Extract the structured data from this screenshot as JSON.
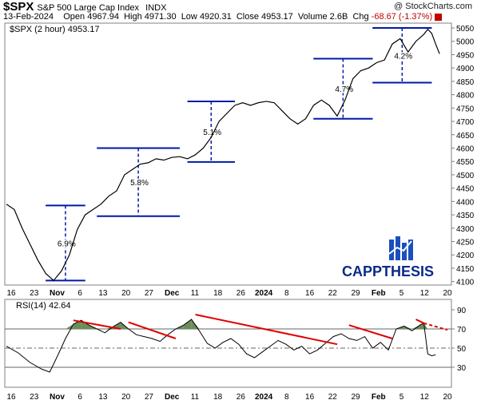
{
  "header": {
    "symbol": "$SPX",
    "name": "S&P 500 Large Cap Index",
    "exchange": "INDX",
    "date": "13-Feb-2024",
    "open_label": "Open",
    "open": "4967.94",
    "high_label": "High",
    "high": "4971.30",
    "low_label": "Low",
    "low": "4920.31",
    "close_label": "Close",
    "close": "4953.17",
    "volume_label": "Volume",
    "volume": "2.6B",
    "chg_label": "Chg",
    "chg": "-68.67 (-1.37%)",
    "watermark": "@ StockCharts.com",
    "chg_color": "#c00000"
  },
  "chart_data": [
    {
      "type": "bar",
      "legend": "$SPX (2 hour) 4953.17",
      "ylim": [
        4090,
        5065
      ],
      "yticks": [
        4100,
        4150,
        4200,
        4250,
        4300,
        4350,
        4400,
        4450,
        4500,
        4550,
        4600,
        4650,
        4700,
        4750,
        4800,
        4850,
        4900,
        4950,
        5000,
        5050
      ],
      "x_tick_labels": [
        "16",
        "23",
        "Nov",
        "6",
        "13",
        "20",
        "27",
        "Dec",
        "11",
        "18",
        "26",
        "2024",
        "8",
        "16",
        "22",
        "29",
        "Feb",
        "5",
        "12",
        "20"
      ],
      "series_path": [
        [
          0,
          4390
        ],
        [
          2,
          4370
        ],
        [
          4,
          4300
        ],
        [
          6,
          4240
        ],
        [
          8,
          4180
        ],
        [
          10,
          4130
        ],
        [
          12,
          4104
        ],
        [
          14,
          4140
        ],
        [
          16,
          4200
        ],
        [
          18,
          4295
        ],
        [
          20,
          4350
        ],
        [
          22,
          4370
        ],
        [
          24,
          4390
        ],
        [
          26,
          4420
        ],
        [
          28,
          4440
        ],
        [
          30,
          4500
        ],
        [
          32,
          4520
        ],
        [
          34,
          4540
        ],
        [
          36,
          4545
        ],
        [
          38,
          4560
        ],
        [
          40,
          4555
        ],
        [
          42,
          4565
        ],
        [
          44,
          4568
        ],
        [
          46,
          4560
        ],
        [
          48,
          4575
        ],
        [
          50,
          4600
        ],
        [
          52,
          4640
        ],
        [
          54,
          4700
        ],
        [
          56,
          4730
        ],
        [
          58,
          4760
        ],
        [
          60,
          4770
        ],
        [
          62,
          4760
        ],
        [
          64,
          4770
        ],
        [
          66,
          4775
        ],
        [
          68,
          4770
        ],
        [
          70,
          4740
        ],
        [
          72,
          4710
        ],
        [
          74,
          4690
        ],
        [
          76,
          4710
        ],
        [
          78,
          4760
        ],
        [
          80,
          4780
        ],
        [
          82,
          4760
        ],
        [
          84,
          4720
        ],
        [
          86,
          4780
        ],
        [
          88,
          4860
        ],
        [
          90,
          4890
        ],
        [
          92,
          4900
        ],
        [
          94,
          4920
        ],
        [
          96,
          4930
        ],
        [
          98,
          4990
        ],
        [
          100,
          5010
        ],
        [
          102,
          4960
        ],
        [
          104,
          5000
        ],
        [
          106,
          5026
        ],
        [
          107,
          5045
        ],
        [
          108,
          5030
        ],
        [
          109,
          4990
        ],
        [
          110,
          4953
        ]
      ],
      "measurements": [
        {
          "label": "6.9%",
          "low": 4104,
          "high": 4385
        },
        {
          "label": "5.8%",
          "low": 4345,
          "high": 4600
        },
        {
          "label": "5.1%",
          "low": 4548,
          "high": 4775
        },
        {
          "label": "4.7%",
          "low": 4710,
          "high": 4935
        },
        {
          "label": "4.2%",
          "low": 4845,
          "high": 5050
        }
      ],
      "line_color": "#000000",
      "box_color": "#0019a8"
    },
    {
      "type": "line",
      "legend": "RSI(14) 42.64",
      "ylim": [
        10,
        100
      ],
      "yticks": [
        30,
        50,
        70,
        90
      ],
      "x_tick_labels": [
        "16",
        "23",
        "Nov",
        "6",
        "13",
        "20",
        "27",
        "Dec",
        "11",
        "18",
        "26",
        "2024",
        "8",
        "16",
        "22",
        "29",
        "Feb",
        "5",
        "12",
        "20"
      ],
      "values": [
        [
          0,
          52
        ],
        [
          3,
          45
        ],
        [
          6,
          35
        ],
        [
          9,
          28
        ],
        [
          11,
          25
        ],
        [
          13,
          42
        ],
        [
          15,
          60
        ],
        [
          17,
          75
        ],
        [
          19,
          79
        ],
        [
          21,
          74
        ],
        [
          23,
          70
        ],
        [
          25,
          66
        ],
        [
          27,
          72
        ],
        [
          29,
          77
        ],
        [
          31,
          70
        ],
        [
          33,
          64
        ],
        [
          35,
          62
        ],
        [
          37,
          60
        ],
        [
          39,
          57
        ],
        [
          41,
          64
        ],
        [
          43,
          70
        ],
        [
          45,
          74
        ],
        [
          47,
          80
        ],
        [
          49,
          68
        ],
        [
          51,
          55
        ],
        [
          53,
          50
        ],
        [
          55,
          56
        ],
        [
          57,
          60
        ],
        [
          59,
          54
        ],
        [
          61,
          44
        ],
        [
          63,
          40
        ],
        [
          65,
          46
        ],
        [
          67,
          52
        ],
        [
          69,
          58
        ],
        [
          71,
          54
        ],
        [
          73,
          48
        ],
        [
          75,
          52
        ],
        [
          77,
          44
        ],
        [
          79,
          48
        ],
        [
          81,
          55
        ],
        [
          83,
          62
        ],
        [
          85,
          65
        ],
        [
          87,
          60
        ],
        [
          89,
          58
        ],
        [
          91,
          62
        ],
        [
          93,
          50
        ],
        [
          95,
          56
        ],
        [
          97,
          48
        ],
        [
          99,
          70
        ],
        [
          101,
          73
        ],
        [
          103,
          68
        ],
        [
          105,
          74
        ],
        [
          106,
          76
        ],
        [
          107,
          44
        ],
        [
          108,
          42
        ],
        [
          109,
          43
        ]
      ],
      "trendlines": [
        {
          "style": "solid",
          "from": [
            17,
            79
          ],
          "to": [
            29,
            70
          ]
        },
        {
          "style": "solid",
          "from": [
            31,
            77
          ],
          "to": [
            43,
            60
          ]
        },
        {
          "style": "solid",
          "from": [
            48,
            85
          ],
          "to": [
            84,
            54
          ]
        },
        {
          "style": "solid",
          "from": [
            87,
            74
          ],
          "to": [
            98,
            60
          ]
        },
        {
          "style": "solid",
          "from": [
            104,
            80
          ],
          "to": [
            106,
            76
          ]
        },
        {
          "style": "dashed",
          "from": [
            106,
            76
          ],
          "to": [
            112,
            69
          ]
        }
      ],
      "overbought": 70,
      "oversold": 30,
      "midline": 50,
      "line_color": "#000000",
      "fill_color": "#6b8e5a",
      "trend_color": "#e00000"
    }
  ],
  "logo": {
    "text": "CAPPTHESIS",
    "color": "#0a2a8a"
  }
}
